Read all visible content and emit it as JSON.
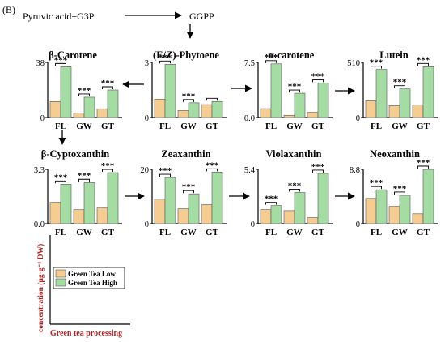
{
  "panel_label": "(B)",
  "pathway": {
    "source": "Pyruvic acid+G3P",
    "product": "GGPP"
  },
  "legend": {
    "low": "Green Tea Low",
    "high": "Green Tea High"
  },
  "axes_caption": {
    "ylabel": "concentration (μg·g⁻¹ DW)",
    "xlabel": "Green tea processing"
  },
  "colors": {
    "low": "#f5cd93",
    "high": "#a4dca4",
    "edge": "#555555",
    "axis_label": "#b32222"
  },
  "chart_data": [
    {
      "type": "bar",
      "title": "β-Carotene",
      "categories": [
        "FL",
        "GW",
        "GT"
      ],
      "ylim": [
        0,
        38
      ],
      "yticks": [
        "0",
        "38"
      ],
      "series": [
        {
          "name": "Green Tea Low",
          "values": [
            11,
            3,
            6
          ]
        },
        {
          "name": "Green Tea High",
          "values": [
            35,
            14,
            19
          ]
        }
      ],
      "annotations": [
        "***",
        "***",
        "***"
      ]
    },
    {
      "type": "bar",
      "title": "(E/Z)-Phytoene",
      "categories": [
        "FL",
        "GW",
        "GT"
      ],
      "ylim": [
        0,
        3
      ],
      "yticks": [
        "0",
        "3"
      ],
      "series": [
        {
          "name": "Green Tea Low",
          "values": [
            1.0,
            0.38,
            0.7
          ]
        },
        {
          "name": "Green Tea High",
          "values": [
            2.9,
            0.8,
            0.87
          ]
        }
      ],
      "annotations": [
        "***",
        "***",
        ""
      ]
    },
    {
      "type": "bar",
      "title": "α-carotene",
      "categories": [
        "FL",
        "GW",
        "GT"
      ],
      "ylim": [
        0,
        7.5
      ],
      "yticks": [
        "0.0",
        "7.5"
      ],
      "series": [
        {
          "name": "Green Tea Low",
          "values": [
            1.2,
            0.3,
            0.7
          ]
        },
        {
          "name": "Green Tea High",
          "values": [
            7.3,
            3.3,
            4.7
          ]
        }
      ],
      "annotations": [
        "***",
        "***",
        "***"
      ]
    },
    {
      "type": "bar",
      "title": "Lutein",
      "categories": [
        "FL",
        "GW",
        "GT"
      ],
      "ylim": [
        0,
        510
      ],
      "yticks": [
        "0",
        "510"
      ],
      "series": [
        {
          "name": "Green Tea Low",
          "values": [
            155,
            110,
            115
          ]
        },
        {
          "name": "Green Tea High",
          "values": [
            445,
            265,
            470
          ]
        }
      ],
      "annotations": [
        "***",
        "***",
        "***"
      ]
    },
    {
      "type": "bar",
      "title": "β-Cyptoxanthin",
      "categories": [
        "FL",
        "GW",
        "GT"
      ],
      "ylim": [
        0,
        3.3
      ],
      "yticks": [
        "0.0",
        "3.3"
      ],
      "series": [
        {
          "name": "Green Tea Low",
          "values": [
            1.3,
            0.85,
            0.95
          ]
        },
        {
          "name": "Green Tea High",
          "values": [
            2.4,
            2.5,
            3.1
          ]
        }
      ],
      "annotations": [
        "***",
        "***",
        "***"
      ]
    },
    {
      "type": "bar",
      "title": "Zeaxanthin",
      "categories": [
        "FL",
        "GW",
        "GT"
      ],
      "ylim": [
        0,
        20
      ],
      "yticks": [
        "0",
        "20"
      ],
      "series": [
        {
          "name": "Green Tea Low",
          "values": [
            9,
            5.5,
            7
          ]
        },
        {
          "name": "Green Tea High",
          "values": [
            17,
            11,
            19
          ]
        }
      ],
      "annotations": [
        "***",
        "***",
        "***"
      ]
    },
    {
      "type": "bar",
      "title": "Violaxanthin",
      "categories": [
        "FL",
        "GW",
        "GT"
      ],
      "ylim": [
        0,
        5.4
      ],
      "yticks": [
        "0",
        "5.4"
      ],
      "series": [
        {
          "name": "Green Tea Low",
          "values": [
            1.4,
            1.3,
            0.6
          ]
        },
        {
          "name": "Green Tea High",
          "values": [
            1.8,
            3.1,
            5.0
          ]
        }
      ],
      "annotations": [
        "***",
        "***",
        "***"
      ]
    },
    {
      "type": "bar",
      "title": "Neoxanthin",
      "categories": [
        "FL",
        "GW",
        "GT"
      ],
      "ylim": [
        0,
        8.8
      ],
      "yticks": [
        "0",
        "8.8"
      ],
      "series": [
        {
          "name": "Green Tea Low",
          "values": [
            4.1,
            2.8,
            1.6
          ]
        },
        {
          "name": "Green Tea High",
          "values": [
            5.5,
            4.6,
            8.8
          ]
        }
      ],
      "annotations": [
        "***",
        "***",
        "***"
      ]
    }
  ]
}
